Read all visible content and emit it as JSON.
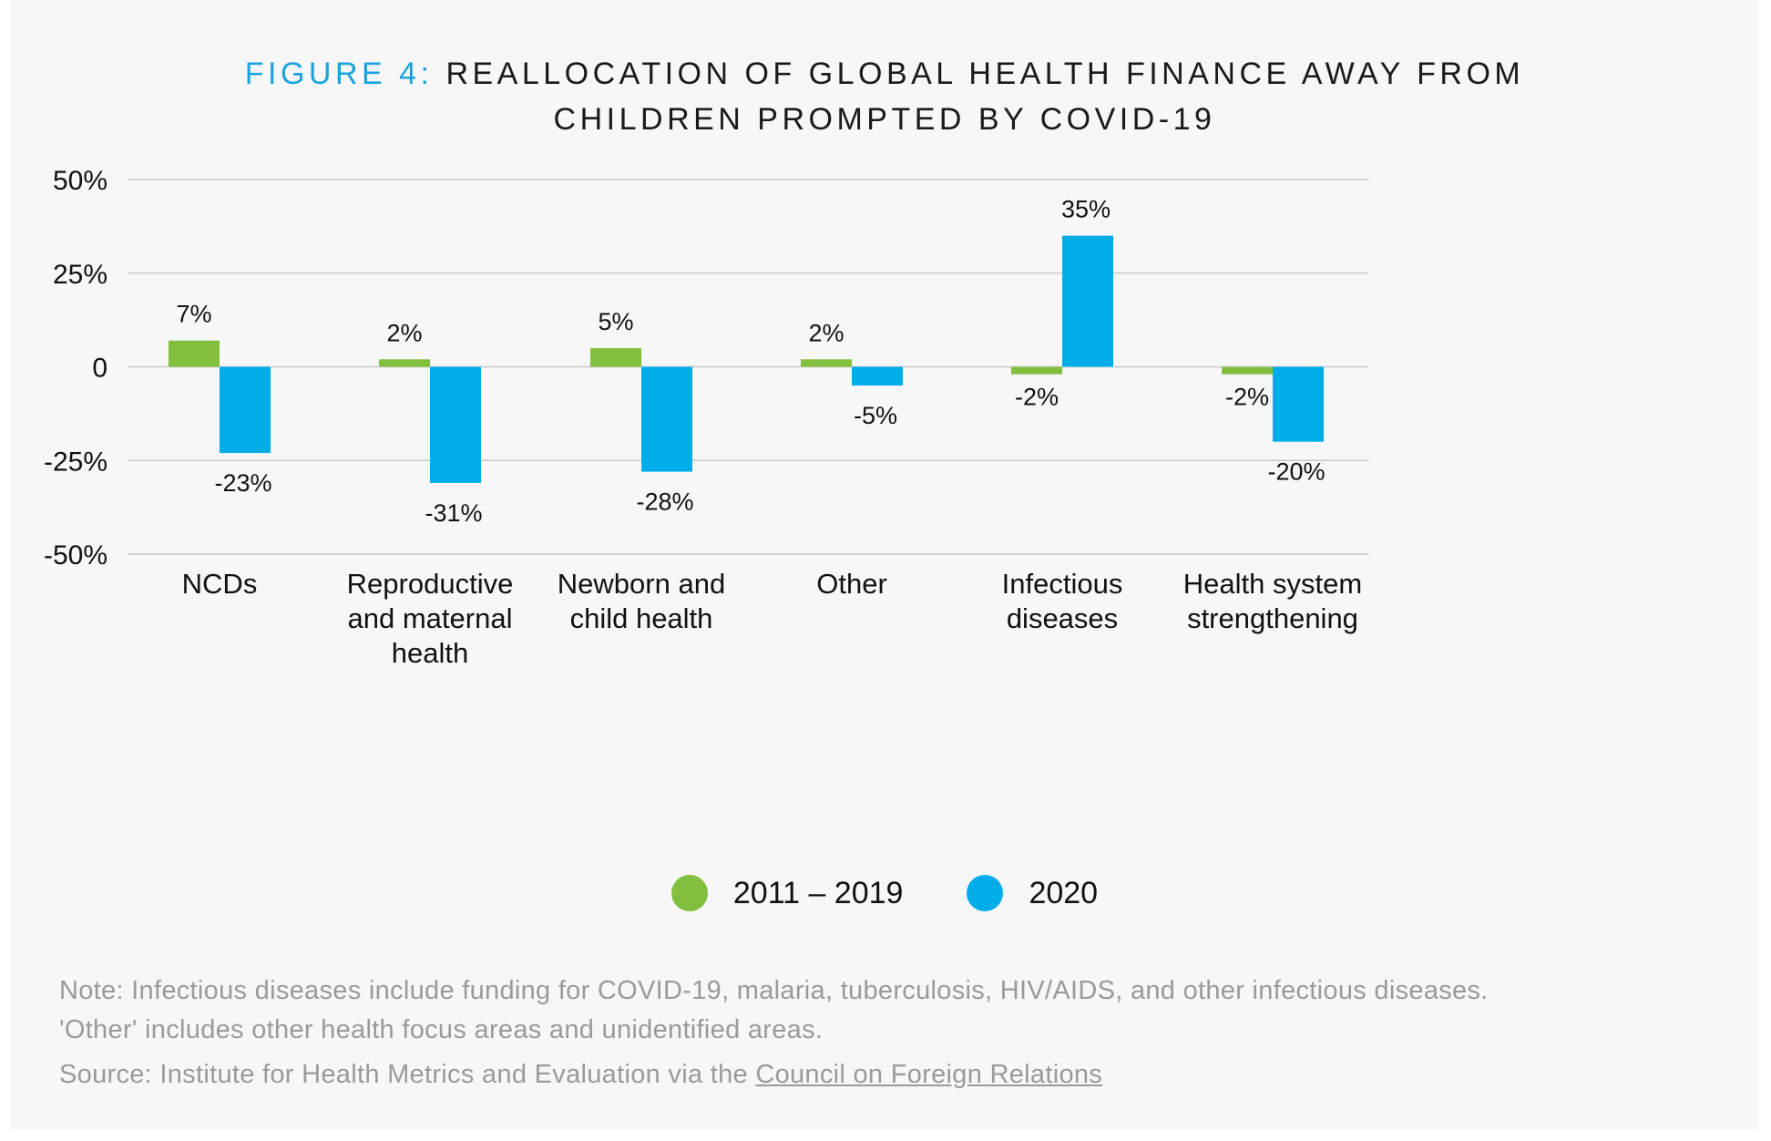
{
  "title": {
    "figure_label": "FIGURE 4:",
    "line1": "REALLOCATION OF GLOBAL HEALTH FINANCE AWAY FROM",
    "line2": "CHILDREN PROMPTED BY COVID-19"
  },
  "colors": {
    "series_2011_2019": "#82bf3f",
    "series_2020": "#00ade9",
    "title_accent": "#1aa3dd",
    "gridline": "#c8c8c8",
    "note_text": "#9a9a9a"
  },
  "chart_data": {
    "type": "bar",
    "categories": [
      [
        "NCDs"
      ],
      [
        "Reproductive",
        "and maternal",
        "health"
      ],
      [
        "Newborn and",
        "child health"
      ],
      [
        "Other"
      ],
      [
        "Infectious",
        "diseases"
      ],
      [
        "Health system",
        "strengthening"
      ]
    ],
    "series": [
      {
        "name": "2011 – 2019",
        "values": [
          7,
          2,
          5,
          2,
          -2,
          -2
        ],
        "data_labels": [
          "7%",
          "2%",
          "5%",
          "2%",
          "-2%",
          "-2%"
        ]
      },
      {
        "name": "2020",
        "values": [
          -23,
          -31,
          -28,
          -5,
          35,
          -20
        ],
        "data_labels": [
          "-23%",
          "-31%",
          "-28%",
          "-5%",
          "35%",
          "-20%"
        ]
      }
    ],
    "ylim": [
      -50,
      50
    ],
    "yticks": [
      50,
      25,
      0,
      -25,
      -50
    ],
    "ytick_labels": [
      "50%",
      "25%",
      "0",
      "-25%",
      "-50%"
    ],
    "grid": true,
    "legend_position": "bottom-center"
  },
  "notes": {
    "note_line1": "Note: Infectious diseases include funding for COVID-19, malaria, tuberculosis, HIV/AIDS, and other infectious diseases.",
    "note_line2": "'Other' includes other health focus areas and unidentified areas.",
    "source_prefix": "Source: Institute for Health Metrics and Evaluation via the ",
    "source_link": "Council on Foreign Relations"
  }
}
